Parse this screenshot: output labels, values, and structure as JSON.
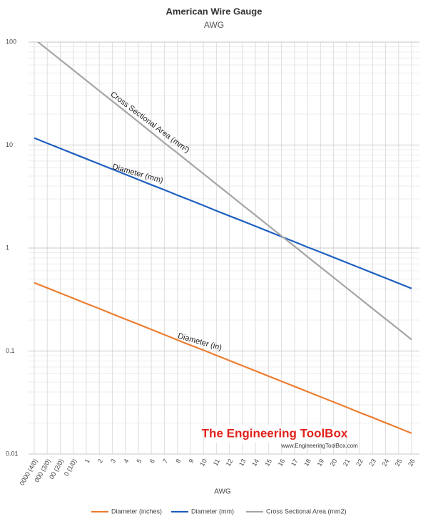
{
  "chart_data": {
    "type": "line",
    "title": "American Wire Gauge",
    "subtitle": "AWG",
    "x_label": "AWG",
    "annotations": [
      "Cross Sectional Area (mm²)",
      "Diameter (mm)",
      "Diameter (in)"
    ],
    "watermark": "The Engineering ToolBox",
    "watermark_url": "www.EngineeringToolBox.com",
    "categories": [
      "0000 (4/0)",
      "000 (3/0)",
      "00 (2/0)",
      "0 (1/0)",
      "1",
      "2",
      "3",
      "4",
      "5",
      "6",
      "7",
      "8",
      "9",
      "10",
      "11",
      "12",
      "13",
      "14",
      "15",
      "16",
      "17",
      "18",
      "19",
      "20",
      "21",
      "22",
      "23",
      "24",
      "25",
      "26"
    ],
    "series": [
      {
        "name": "Diameter (inches)",
        "color": "#ed7d31",
        "values": [
          0.46,
          0.41,
          0.365,
          0.325,
          0.289,
          0.258,
          0.229,
          0.204,
          0.182,
          0.162,
          0.144,
          0.128,
          0.114,
          0.102,
          0.0907,
          0.0808,
          0.072,
          0.0641,
          0.0571,
          0.0508,
          0.0453,
          0.0403,
          0.0359,
          0.032,
          0.0285,
          0.0253,
          0.0226,
          0.0201,
          0.0179,
          0.0159
        ]
      },
      {
        "name": "Diameter (mm)",
        "color": "#1f5fbf",
        "values": [
          11.7,
          10.4,
          9.27,
          8.25,
          7.35,
          6.54,
          5.83,
          5.19,
          4.62,
          4.11,
          3.67,
          3.26,
          2.91,
          2.59,
          2.3,
          2.05,
          1.83,
          1.63,
          1.45,
          1.29,
          1.15,
          1.02,
          0.912,
          0.812,
          0.723,
          0.644,
          0.573,
          0.511,
          0.455,
          0.405
        ]
      },
      {
        "name": "Cross Sectional Area (mm2)",
        "color": "#a5a5a5",
        "values": [
          107,
          85,
          67.4,
          53.5,
          42.4,
          33.6,
          26.7,
          21.2,
          16.8,
          13.3,
          10.5,
          8.37,
          6.63,
          5.26,
          4.17,
          3.31,
          2.62,
          2.08,
          1.65,
          1.31,
          1.04,
          0.823,
          0.653,
          0.518,
          0.411,
          0.326,
          0.258,
          0.205,
          0.163,
          0.129
        ]
      }
    ],
    "log_y": true,
    "ylim": [
      0.01,
      100
    ],
    "yticks": [
      0.01,
      0.1,
      1,
      10,
      100
    ],
    "grid": true,
    "legend": "bottom"
  }
}
